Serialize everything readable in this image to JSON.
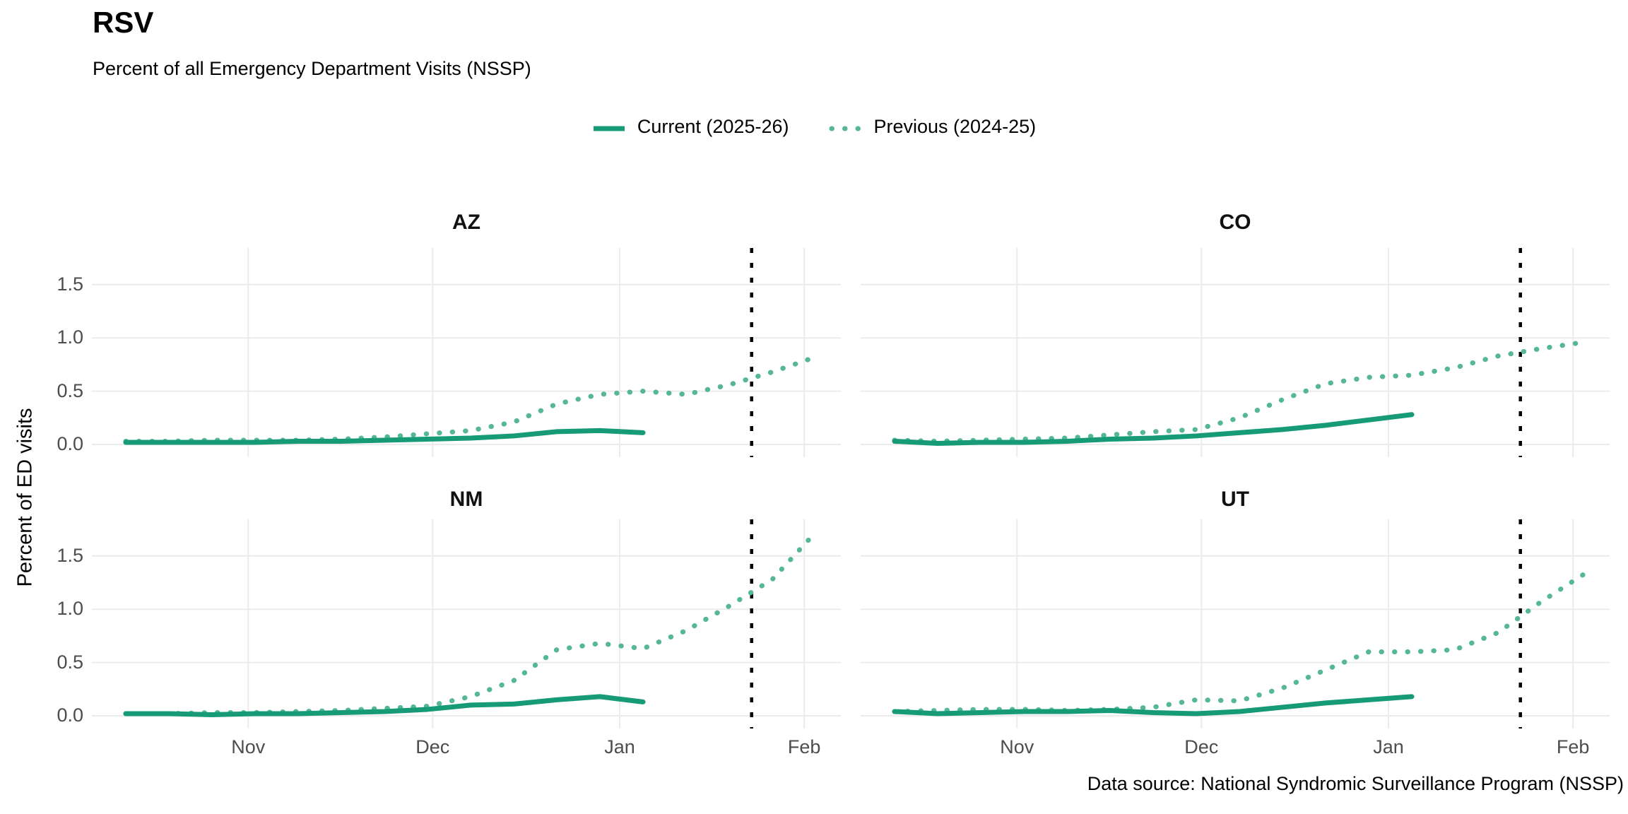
{
  "header": {
    "title": "RSV",
    "subtitle": "Percent of all Emergency Department Visits (NSSP)"
  },
  "legend": {
    "current_label": "Current (2025-26)",
    "previous_label": "Previous (2024-25)"
  },
  "axes": {
    "y_title": "Percent of ED visits",
    "y_tick_labels": [
      "0.0",
      "0.5",
      "1.0",
      "1.5"
    ],
    "x_tick_labels": [
      "Nov",
      "Dec",
      "Jan",
      "Feb"
    ]
  },
  "caption": "Data source: National Syndromic Surveillance Program (NSSP)",
  "colors": {
    "current": "#179b77",
    "previous": "#55b795",
    "reference_line": "#000000",
    "grid": "#ebebeb",
    "tick_text": "#4d4d4d"
  },
  "chart_data": {
    "type": "line",
    "title": "RSV",
    "subtitle": "Percent of all Emergency Department Visits (NSSP)",
    "ylabel": "Percent of ED visits",
    "xlabel": "",
    "grid": true,
    "legend_position": "top",
    "ylim": [
      -0.12,
      1.85
    ],
    "y_ticks": [
      0.0,
      0.5,
      1.0,
      1.5
    ],
    "x_unit": "week index (weekly values starting mid-October; current season ends early January, previous season extends to early February)",
    "x_month_ticks": [
      {
        "label": "Nov",
        "week": 2.84
      },
      {
        "label": "Dec",
        "week": 7.12
      },
      {
        "label": "Jan",
        "week": 11.46
      },
      {
        "label": "Feb",
        "week": 15.74
      }
    ],
    "reference_line": {
      "week": 14.52,
      "style": "dotted",
      "color": "#000000"
    },
    "series_meta": [
      {
        "name": "Current (2025-26)",
        "style": "solid",
        "color": "#179b77"
      },
      {
        "name": "Previous (2024-25)",
        "style": "dotted",
        "color": "#55b795"
      }
    ],
    "facets": [
      {
        "state": "AZ",
        "current": [
          0.02,
          0.02,
          0.02,
          0.02,
          0.03,
          0.03,
          0.04,
          0.05,
          0.06,
          0.08,
          0.12,
          0.13,
          0.11
        ],
        "previous": [
          0.03,
          0.03,
          0.04,
          0.04,
          0.04,
          0.05,
          0.07,
          0.1,
          0.13,
          0.21,
          0.38,
          0.47,
          0.5,
          0.47,
          0.56,
          0.68,
          0.82
        ]
      },
      {
        "state": "CO",
        "current": [
          0.03,
          0.01,
          0.02,
          0.02,
          0.03,
          0.05,
          0.06,
          0.08,
          0.11,
          0.14,
          0.18,
          0.23,
          0.28
        ],
        "previous": [
          0.04,
          0.03,
          0.04,
          0.05,
          0.06,
          0.09,
          0.12,
          0.14,
          0.25,
          0.42,
          0.57,
          0.63,
          0.65,
          0.72,
          0.83,
          0.9,
          0.96
        ]
      },
      {
        "state": "NM",
        "current": [
          0.02,
          0.02,
          0.01,
          0.02,
          0.02,
          0.03,
          0.04,
          0.06,
          0.1,
          0.11,
          0.15,
          0.18,
          0.13
        ],
        "previous": [
          0.02,
          0.02,
          0.03,
          0.03,
          0.04,
          0.05,
          0.07,
          0.09,
          0.18,
          0.33,
          0.62,
          0.68,
          0.63,
          0.8,
          1.03,
          1.28,
          1.72
        ]
      },
      {
        "state": "UT",
        "current": [
          0.04,
          0.02,
          0.03,
          0.04,
          0.04,
          0.05,
          0.03,
          0.02,
          0.04,
          0.08,
          0.12,
          0.15,
          0.18
        ],
        "previous": [
          0.04,
          0.05,
          0.06,
          0.06,
          0.05,
          0.06,
          0.08,
          0.15,
          0.14,
          0.26,
          0.43,
          0.6,
          0.6,
          0.62,
          0.78,
          1.07,
          1.33
        ]
      }
    ]
  }
}
